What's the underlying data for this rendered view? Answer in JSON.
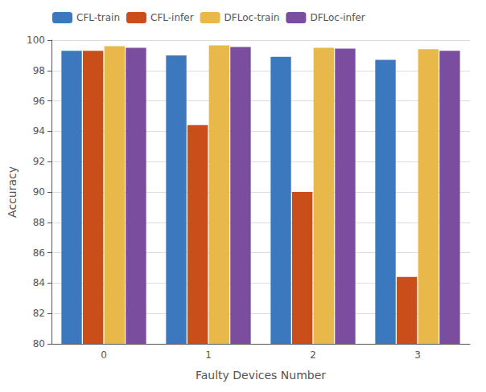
{
  "chart_data": {
    "type": "bar",
    "categories": [
      "0",
      "1",
      "2",
      "3"
    ],
    "series": [
      {
        "name": "CFL-train",
        "color": "#3B78BE",
        "values": [
          99.3,
          99.0,
          98.9,
          98.7
        ]
      },
      {
        "name": "CFL-infer",
        "color": "#C94E1A",
        "values": [
          99.3,
          94.4,
          90.0,
          84.4
        ]
      },
      {
        "name": "DFLoc-train",
        "color": "#E8B84B",
        "values": [
          99.6,
          99.65,
          99.5,
          99.4
        ]
      },
      {
        "name": "DFLoc-infer",
        "color": "#7B4D9E",
        "values": [
          99.5,
          99.55,
          99.45,
          99.3
        ]
      }
    ],
    "xlabel": "Faulty Devices Number",
    "ylabel": "Accuracy",
    "ylim": [
      80,
      100
    ],
    "yticks": [
      80,
      82,
      84,
      86,
      88,
      90,
      92,
      94,
      96,
      98,
      100
    ],
    "grid": true,
    "legend": "upper left"
  }
}
